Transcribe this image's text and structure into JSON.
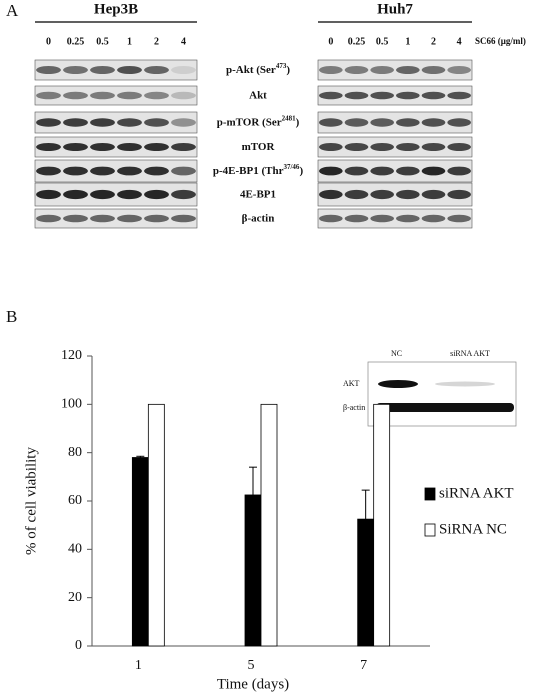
{
  "panel_a": {
    "letter": "A",
    "blots": [
      {
        "title": "Hep3B",
        "lanes": [
          "0",
          "0.25",
          "0.5",
          "1",
          "2",
          "4"
        ]
      },
      {
        "title": "Huh7",
        "lanes": [
          "0",
          "0.25",
          "0.5",
          "1",
          "2",
          "4"
        ]
      }
    ],
    "treatment": "SC66 (μg/ml)",
    "rows": [
      {
        "label": "p-Akt (Ser",
        "sup": "473",
        "suffix": ")"
      },
      {
        "label": "Akt"
      },
      {
        "label": "p-mTOR (Ser",
        "sup": "2481",
        "suffix": ")"
      },
      {
        "label": "mTOR"
      },
      {
        "label": "p-4E-BP1 (Thr",
        "sup": "37/46",
        "suffix": ")"
      },
      {
        "label": "4E-BP1"
      },
      {
        "label": "β-actin"
      }
    ]
  },
  "panel_b": {
    "letter": "B",
    "inset": {
      "lanes": [
        "NC",
        "siRNA AKT"
      ],
      "rows": [
        "AKT",
        "β-actin"
      ]
    }
  },
  "chart_data": {
    "type": "bar",
    "x_label": "Time (days)",
    "y_label": "% of cell viability",
    "categories": [
      "1",
      "5",
      "7"
    ],
    "series": [
      {
        "name": "siRNA AKT",
        "color": "#000000",
        "values": [
          78,
          62.5,
          52.5
        ],
        "errors": [
          0.5,
          11.5,
          12
        ]
      },
      {
        "name": "SiRNA NC",
        "color": "#ffffff",
        "values": [
          100,
          100,
          100
        ]
      }
    ],
    "ylim": [
      0,
      120
    ],
    "yticks": [
      0,
      20,
      40,
      60,
      80,
      100,
      120
    ],
    "legend": "right"
  }
}
